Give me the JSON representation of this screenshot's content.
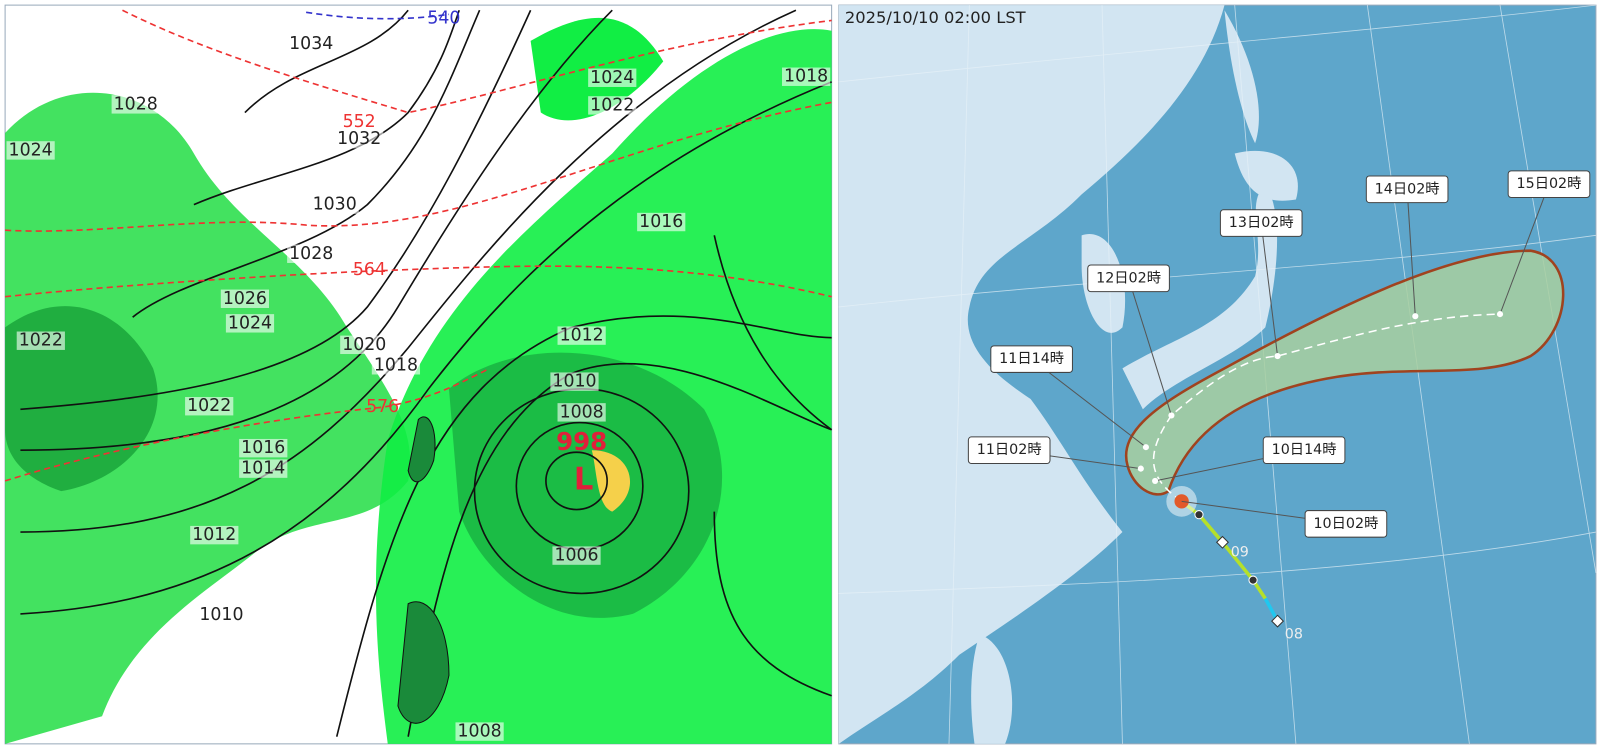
{
  "left_map": {
    "isobar_labels": [
      "1034",
      "1028",
      "1024",
      "1032",
      "1030",
      "1028",
      "1026",
      "1024",
      "1022",
      "1020",
      "1018",
      "1022",
      "1016",
      "1014",
      "1012",
      "1010",
      "1024",
      "1022",
      "1018",
      "1016",
      "1012",
      "1010",
      "1008",
      "1006",
      "1008"
    ],
    "height_labels": [
      "552",
      "564",
      "576"
    ],
    "height_label_blue": "540",
    "low_pressure": {
      "pressure": "998",
      "symbol": "L"
    }
  },
  "right_map": {
    "timestamp": "2025/10/10 02:00 LST",
    "forecast_labels": [
      "10日02時",
      "10日14時",
      "11日02時",
      "11日14時",
      "12日02時",
      "13日02時",
      "14日02時",
      "15日02時"
    ],
    "past_labels": [
      "09",
      "08"
    ]
  }
}
